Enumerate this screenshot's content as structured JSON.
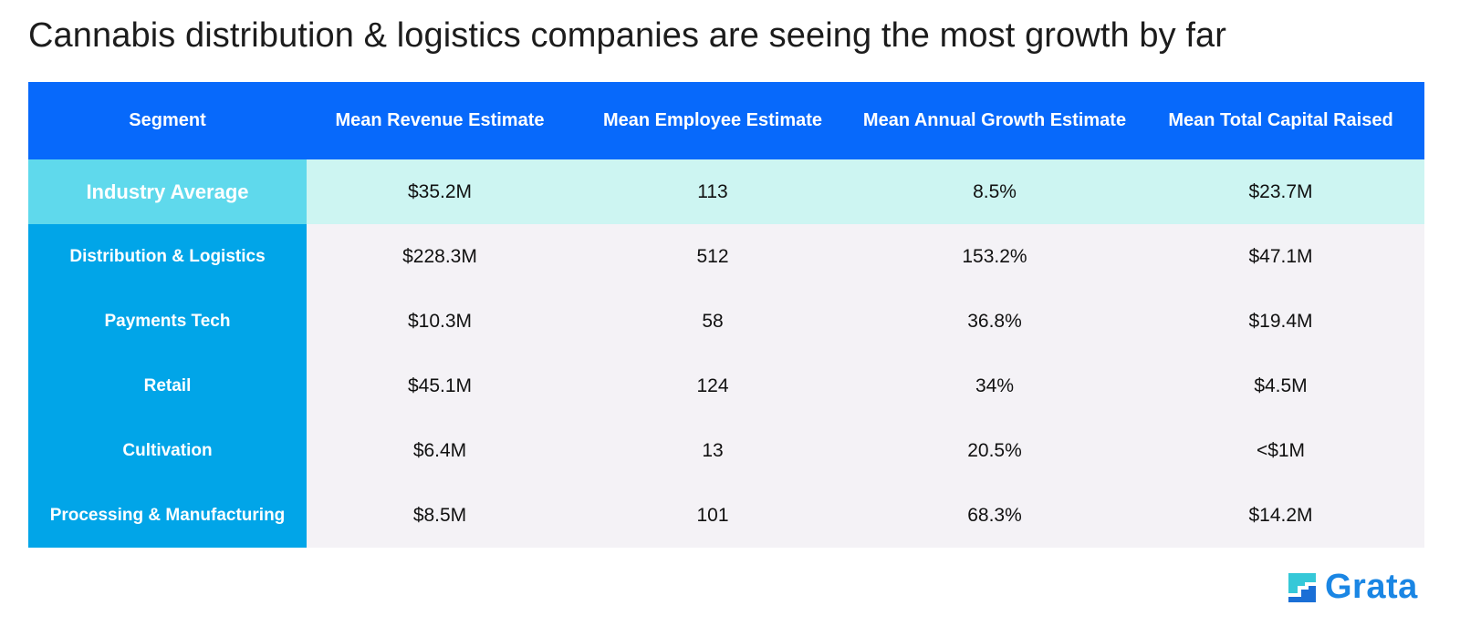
{
  "title": "Cannabis distribution & logistics companies are seeing the most growth by far",
  "chart_data": {
    "type": "table",
    "columns": [
      "Segment",
      "Mean Revenue Estimate",
      "Mean Employee Estimate",
      "Mean Annual Growth Estimate",
      "Mean Total Capital Raised"
    ],
    "rows": [
      [
        "Industry Average",
        "$35.2M",
        "113",
        "8.5%",
        "$23.7M"
      ],
      [
        "Distribution & Logistics",
        "$228.3M",
        "512",
        "153.2%",
        "$47.1M"
      ],
      [
        "Payments Tech",
        "$10.3M",
        "58",
        "36.8%",
        "$19.4M"
      ],
      [
        "Retail",
        "$45.1M",
        "124",
        "34%",
        "$4.5M"
      ],
      [
        "Cultivation",
        "$6.4M",
        "13",
        "20.5%",
        "<$1M"
      ],
      [
        "Processing & Manufacturing",
        "$8.5M",
        "101",
        "68.3%",
        "$14.2M"
      ]
    ]
  },
  "colors": {
    "header_bg": "#0769fb",
    "average_label_bg": "#5fd9ec",
    "average_row_bg": "#cdf5f2",
    "segment_label_bg": "#01a5e8",
    "segment_row_bg": "#f4f2f6",
    "logo": "#1a86e4"
  },
  "logo": {
    "text": "Grata",
    "icon": "grata-logo-icon"
  }
}
